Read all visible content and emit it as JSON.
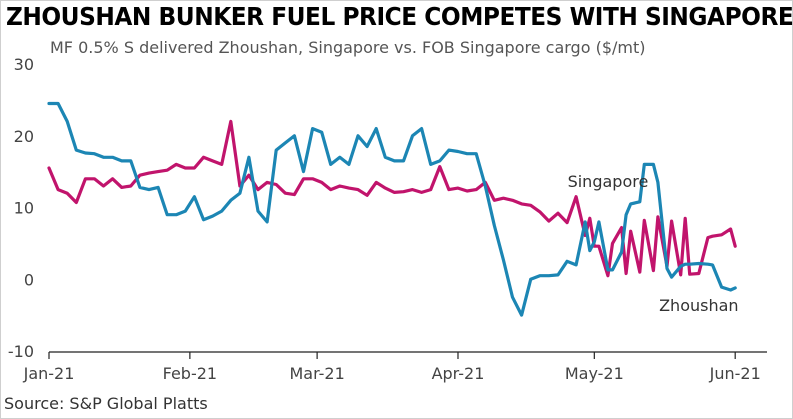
{
  "chart_data": {
    "type": "line",
    "title": "ZHOUSHAN BUNKER FUEL PRICE COMPETES WITH SINGAPORE",
    "subtitle": "MF 0.5% S delivered  Zhoushan, Singapore  vs. FOB Singapore cargo ($/mt)",
    "source": "Source: S&P Global Platts",
    "ylim": [
      -10,
      30
    ],
    "yticks": [
      "30",
      "20",
      "10",
      "0",
      "-10"
    ],
    "ytick_values": [
      30,
      20,
      10,
      0,
      -10
    ],
    "xlim": [
      0,
      158
    ],
    "xticks": [
      "Jan-21",
      "Feb-21",
      "Mar-21",
      "Apr-21",
      "May-21",
      "Jun-21"
    ],
    "xtick_values": [
      0,
      31,
      59,
      90,
      120,
      151
    ],
    "grid": false,
    "annotations": [
      {
        "text": "Singapore",
        "x": 123,
        "y": 13.7
      },
      {
        "text": "Zhoushan",
        "x": 143,
        "y": -3.6
      }
    ],
    "series": [
      {
        "name": "Singapore",
        "color": "#c1146c",
        "x": [
          0,
          2,
          4,
          6,
          8,
          10,
          12,
          14,
          16,
          18,
          20,
          22,
          24,
          26,
          28,
          30,
          32,
          34,
          36,
          38,
          40,
          42,
          44,
          46,
          48,
          50,
          52,
          54,
          56,
          58,
          60,
          62,
          64,
          66,
          68,
          70,
          72,
          74,
          76,
          78,
          80,
          82,
          84,
          86,
          88,
          90,
          92,
          94,
          96,
          98,
          100,
          102,
          104,
          106,
          108,
          110,
          112,
          114,
          116,
          118,
          119,
          120,
          121,
          123,
          124,
          126,
          127,
          128,
          130,
          131,
          133,
          134,
          136,
          137,
          139,
          140,
          141,
          143,
          145,
          146,
          148,
          150,
          151
        ],
        "values": [
          15.5,
          12.5,
          12,
          10.7,
          14,
          14,
          13,
          14,
          12.8,
          13,
          14.5,
          14.8,
          15,
          15.2,
          16,
          15.5,
          15.5,
          17,
          16.5,
          16,
          22,
          13,
          14.5,
          12.5,
          13.5,
          13.2,
          12,
          11.8,
          14,
          14,
          13.5,
          12.5,
          13,
          12.7,
          12.5,
          11.7,
          13.5,
          12.7,
          12.1,
          12.2,
          12.5,
          12.1,
          12.5,
          15.7,
          12.5,
          12.7,
          12.3,
          12.5,
          13.5,
          11,
          11.3,
          11,
          10.5,
          10.3,
          9.4,
          8.1,
          9.2,
          7.9,
          11.5,
          6.1,
          8.5,
          4.6,
          4.6,
          0.5,
          5,
          7.2,
          0.8,
          6.7,
          1,
          8.2,
          1.2,
          8.7,
          1.8,
          8.1,
          0.6,
          8.5,
          0.7,
          0.8,
          5.8,
          6,
          6.2,
          7,
          4.6
        ]
      },
      {
        "name": "Zhoushan",
        "color": "#1c86b4",
        "x": [
          0,
          2,
          4,
          6,
          8,
          10,
          12,
          14,
          16,
          18,
          20,
          22,
          24,
          26,
          28,
          30,
          32,
          34,
          36,
          38,
          40,
          42,
          44,
          46,
          48,
          50,
          52,
          54,
          56,
          58,
          60,
          62,
          64,
          66,
          68,
          70,
          72,
          74,
          76,
          78,
          80,
          82,
          84,
          86,
          88,
          90,
          92,
          94,
          96,
          98,
          100,
          102,
          104,
          106,
          108,
          110,
          112,
          114,
          116,
          118,
          119,
          120,
          121,
          123,
          124,
          126,
          127,
          128,
          130,
          131,
          133,
          134,
          136,
          137,
          139,
          140,
          141,
          143,
          145,
          146,
          148,
          150,
          151
        ],
        "values": [
          24.5,
          24.5,
          22,
          18,
          17.6,
          17.5,
          17,
          17,
          16.5,
          16.5,
          12.8,
          12.5,
          12.8,
          9,
          9,
          9.5,
          11.5,
          8.3,
          8.8,
          9.5,
          11,
          12,
          17,
          9.5,
          8,
          18,
          19,
          20,
          15,
          21,
          20.5,
          16,
          17,
          16,
          20,
          18.5,
          21,
          17,
          16.5,
          16.5,
          20,
          21,
          16,
          16.5,
          18,
          17.8,
          17.5,
          17.5,
          13,
          7.5,
          2.7,
          -2.5,
          -5,
          0,
          0.5,
          0.5,
          0.6,
          2.5,
          2,
          8,
          4,
          5.2,
          8,
          1.3,
          1.3,
          3.8,
          9,
          10.5,
          10.8,
          16,
          16,
          13.5,
          1.5,
          0.3,
          1.8,
          2.1,
          2.1,
          2.2,
          2.1,
          2,
          -1.1,
          -1.5,
          -1.2
        ]
      }
    ]
  }
}
